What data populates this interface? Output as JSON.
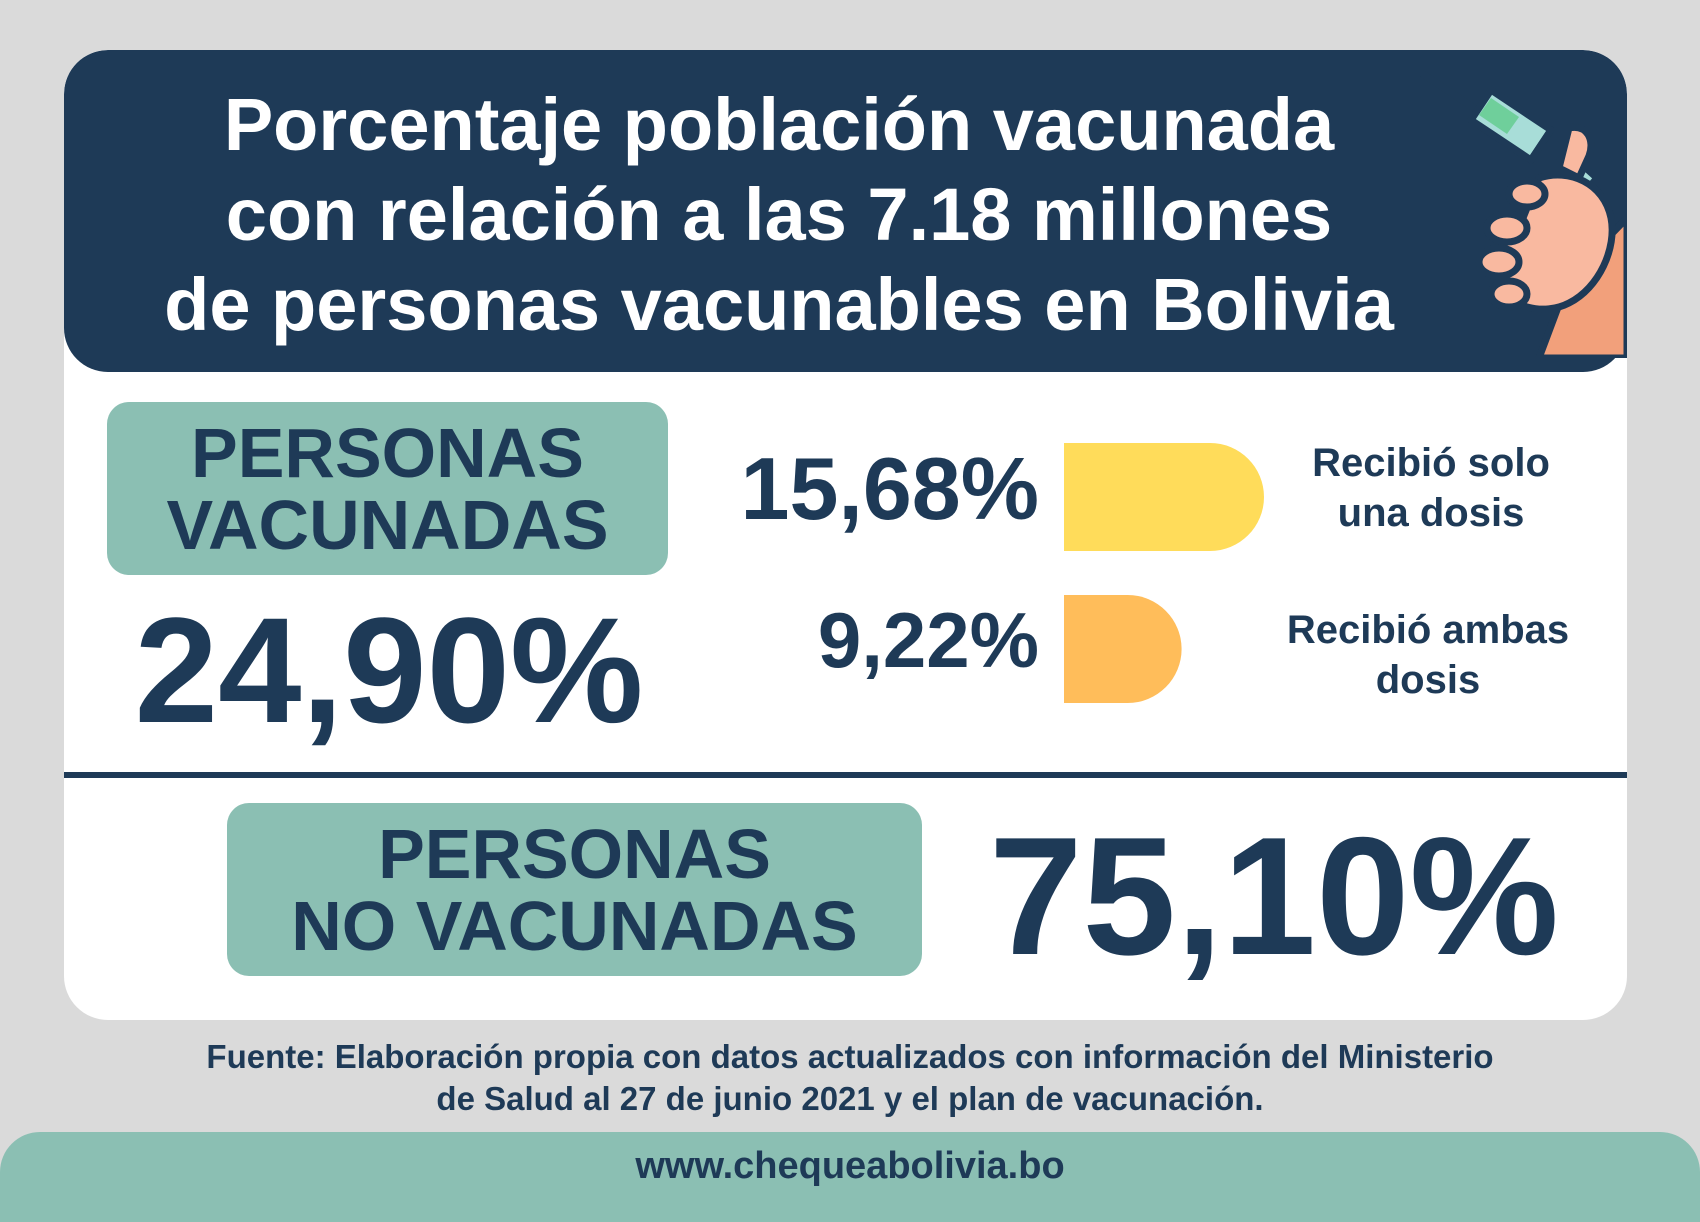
{
  "title": "Porcentaje población vacunada\ncon relación a las 7.18 millones\nde personas vacunables en Bolivia",
  "vaccinated": {
    "label": "PERSONAS\nVACUNADAS",
    "value": "24,90%"
  },
  "not_vaccinated": {
    "label": "PERSONAS\nNO VACUNADAS",
    "value": "75,10%"
  },
  "breakdown": [
    {
      "value_text": "15,68%",
      "label": "Recibió solo\nuna dosis",
      "color": "#ffdc5a"
    },
    {
      "value_text": "9,22%",
      "label": "Recibió ambas\ndosis",
      "color": "#ffbd5a"
    }
  ],
  "source": "Fuente:  Elaboración propia con datos actualizados con información del Ministerio\nde Salud al 27 de junio 2021 y el plan de vacunación.",
  "footer": {
    "url": "www.chequeabolivia.bo"
  },
  "icon": "syringe-in-hand-icon",
  "colors": {
    "navy": "#1e3a57",
    "teal": "#8bbfb3",
    "background": "#dadada",
    "yellow": "#ffdc5a",
    "orange": "#ffbd5a"
  },
  "chart_data": {
    "type": "bar",
    "categories": [
      "Recibió solo una dosis",
      "Recibió ambas dosis"
    ],
    "values": [
      15.68,
      9.22
    ],
    "colors": [
      "#ffdc5a",
      "#ffbd5a"
    ],
    "total_vaccinated": 24.9,
    "not_vaccinated": 75.1,
    "grid": false,
    "legend": "none"
  }
}
